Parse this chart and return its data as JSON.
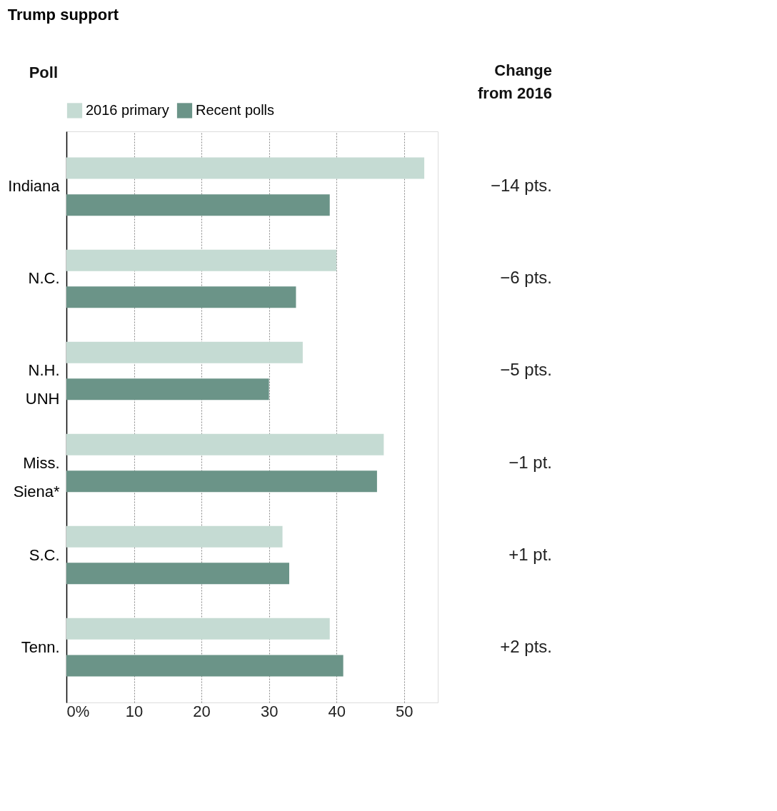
{
  "chart_data": {
    "type": "bar",
    "orientation": "horizontal",
    "title": "Trump support",
    "categories": [
      "Indiana",
      "N.C.",
      "N.H.\nUNH",
      "Miss.\nSiena*",
      "S.C.",
      "Tenn."
    ],
    "series": [
      {
        "name": "2016 primary",
        "color": "#c5dbd3",
        "values": [
          53,
          40,
          35,
          47,
          32,
          39
        ]
      },
      {
        "name": "Recent polls",
        "color": "#6b9488",
        "values": [
          39,
          34,
          30,
          46,
          33,
          41
        ]
      }
    ],
    "xlim": [
      0,
      55
    ],
    "xticks": [
      {
        "value": 0,
        "label": "0%"
      },
      10,
      20,
      30,
      40,
      50
    ],
    "grid": "x",
    "legend": "top",
    "annotations": [
      "Poll",
      "Change\nfrom 2016",
      "−14 pts.",
      "−6 pts.",
      "−5 pts.",
      "−1 pt.",
      "+1 pt.",
      "+2 pts."
    ]
  }
}
